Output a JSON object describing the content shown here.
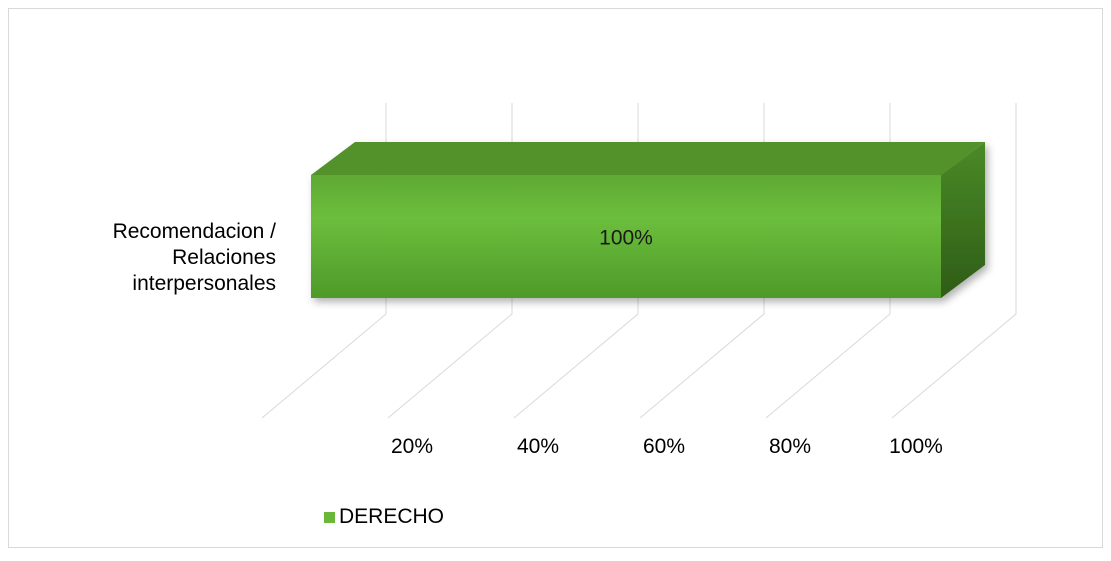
{
  "chart_data": {
    "type": "bar",
    "orientation": "horizontal",
    "style": "3d",
    "categories": [
      "Recomendacion / Relaciones interpersonales"
    ],
    "category_label_lines": [
      "Recomendacion /",
      "Relaciones",
      "interpersonales"
    ],
    "series": [
      {
        "name": "DERECHO",
        "values": [
          100
        ],
        "data_labels": [
          "100%"
        ],
        "color": "#6ab83a"
      }
    ],
    "x_ticks": [
      {
        "value": 20,
        "label": "20%"
      },
      {
        "value": 40,
        "label": "40%"
      },
      {
        "value": 60,
        "label": "60%"
      },
      {
        "value": 80,
        "label": "80%"
      },
      {
        "value": 100,
        "label": "100%"
      }
    ],
    "xlim": [
      0,
      100
    ],
    "grid": true,
    "legend_position": "bottom-left",
    "colors": {
      "bar_front": "#6ab83a",
      "bar_top": "#53912b",
      "bar_side": "#3f7521",
      "gridline": "#d9d9d9",
      "text": "#000000"
    }
  }
}
